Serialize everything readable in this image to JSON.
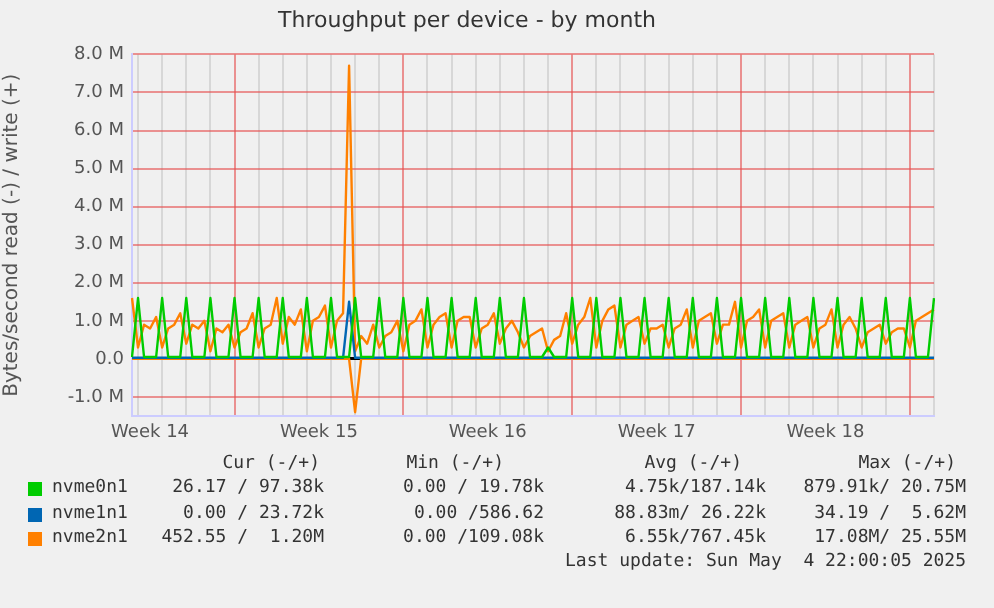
{
  "chart_data": {
    "type": "line",
    "title": "Throughput per device - by month",
    "ylabel": "Bytes/second read (-) / write (+)",
    "categories": [
      null,
      null,
      null,
      "Week 14",
      null,
      null,
      null,
      null,
      null,
      null,
      null,
      null,
      null,
      null,
      null,
      null,
      null,
      null,
      null,
      null,
      null,
      null,
      null,
      null,
      null,
      null,
      null,
      null,
      null,
      null,
      null,
      "Week 15",
      null,
      null,
      null,
      null,
      null,
      null,
      null,
      null,
      null,
      null,
      null,
      null,
      null,
      null,
      null,
      null,
      null,
      null,
      null,
      null,
      null,
      null,
      null,
      null,
      null,
      null,
      null,
      "Week 16",
      null,
      null,
      null,
      null,
      null,
      null,
      null,
      null,
      null,
      null,
      null,
      null,
      null,
      null,
      null,
      null,
      null,
      null,
      null,
      null,
      null,
      null,
      null,
      null,
      null,
      null,
      null,
      "Week 17",
      null,
      null,
      null,
      null,
      null,
      null,
      null,
      null,
      null,
      null,
      null,
      null,
      null,
      null,
      null,
      null,
      null,
      null,
      null,
      null,
      null,
      null,
      null,
      null,
      null,
      null,
      null,
      "Week 18",
      null,
      null,
      null,
      null,
      null,
      null,
      null,
      null,
      null,
      null,
      null,
      null,
      null,
      null,
      null,
      null,
      null,
      null
    ],
    "ylim": [
      -1.5,
      8
    ],
    "yticks": [
      {
        "value": -1,
        "label": "-1.0 M"
      },
      {
        "value": 0,
        "label": "0.0"
      },
      {
        "value": 1,
        "label": "1.0 M"
      },
      {
        "value": 2,
        "label": "2.0 M"
      },
      {
        "value": 3,
        "label": "3.0 M"
      },
      {
        "value": 4,
        "label": "4.0 M"
      },
      {
        "value": 5,
        "label": "5.0 M"
      },
      {
        "value": 6,
        "label": "6.0 M"
      },
      {
        "value": 7,
        "label": "7.0 M"
      },
      {
        "value": 8,
        "label": "8.0 M"
      }
    ],
    "grid": true,
    "legend": "bottom",
    "marker": "none",
    "line_style": "solid",
    "series": [
      {
        "name": "nvme0n1",
        "color": "#00cc00",
        "values": [
          0.05,
          1.6,
          0.05,
          0.05,
          0.05,
          1.6,
          0.05,
          0.05,
          0.05,
          1.6,
          0.05,
          0.05,
          0.05,
          1.6,
          0.05,
          0.05,
          0.05,
          1.6,
          0.05,
          0.05,
          0.05,
          1.6,
          0.05,
          0.05,
          0.05,
          1.6,
          0.05,
          0.05,
          0.05,
          1.6,
          0.05,
          0.05,
          0.05,
          1.6,
          0.05,
          0.05,
          0.05,
          1.6,
          0.05,
          0.05,
          0.05,
          1.6,
          0.05,
          0.05,
          0.05,
          1.6,
          0.05,
          0.05,
          0.05,
          1.6,
          0.05,
          0.05,
          0.05,
          1.6,
          0.05,
          0.05,
          0.05,
          1.6,
          0.05,
          0.05,
          0.05,
          1.6,
          0.05,
          0.05,
          0.05,
          1.6,
          0.05,
          0.05,
          0.05,
          0.3,
          0.05,
          0.05,
          0.05,
          1.6,
          0.05,
          0.05,
          0.05,
          1.6,
          0.05,
          0.05,
          0.05,
          1.6,
          0.05,
          0.05,
          0.05,
          1.6,
          0.05,
          0.05,
          0.05,
          1.6,
          0.05,
          0.05,
          0.05,
          1.6,
          0.05,
          0.05,
          0.05,
          1.6,
          0.05,
          0.05,
          0.05,
          1.6,
          0.05,
          0.05,
          0.05,
          1.6,
          0.05,
          0.05,
          0.05,
          1.6,
          0.05,
          0.05,
          0.05,
          1.6,
          0.05,
          0.05,
          0.05,
          1.6,
          0.05,
          0.05,
          0.05,
          1.6,
          0.05,
          0.05,
          0.05,
          1.6,
          0.05,
          0.05,
          0.05,
          1.6,
          0.05,
          0.05,
          0.05,
          1.6
        ]
      },
      {
        "name": "nvme1n1",
        "color": "#0066b3",
        "values": [
          0.03,
          0.03,
          0.03,
          0.03,
          0.03,
          0.03,
          0.03,
          0.03,
          0.03,
          0.03,
          0.03,
          0.03,
          0.03,
          0.03,
          0.03,
          0.03,
          0.03,
          0.03,
          0.03,
          0.03,
          0.03,
          0.03,
          0.03,
          0.03,
          0.03,
          0.03,
          0.03,
          0.03,
          0.03,
          0.03,
          0.03,
          0.03,
          0.03,
          0.03,
          0.03,
          0.03,
          1.5,
          0.03,
          0.03,
          0.03,
          0.03,
          0.03,
          0.03,
          0.03,
          0.03,
          0.03,
          0.03,
          0.03,
          0.03,
          0.03,
          0.03,
          0.03,
          0.03,
          0.03,
          0.03,
          0.03,
          0.03,
          0.03,
          0.03,
          0.03,
          0.03,
          0.03,
          0.03,
          0.03,
          0.03,
          0.03,
          0.03,
          0.03,
          0.03,
          0.03,
          0.03,
          0.03,
          0.03,
          0.03,
          0.03,
          0.03,
          0.03,
          0.03,
          0.03,
          0.03,
          0.03,
          0.03,
          0.03,
          0.03,
          0.03,
          0.03,
          0.03,
          0.03,
          0.03,
          0.03,
          0.03,
          0.03,
          0.03,
          0.03,
          0.03,
          0.03,
          0.03,
          0.03,
          0.03,
          0.03,
          0.03,
          0.03,
          0.03,
          0.03,
          0.03,
          0.03,
          0.03,
          0.03,
          0.03,
          0.03,
          0.03,
          0.03,
          0.03,
          0.03,
          0.03,
          0.03,
          0.03,
          0.03,
          0.03,
          0.03,
          0.03,
          0.03,
          0.03,
          0.03,
          0.03,
          0.03,
          0.03,
          0.03,
          0.03,
          0.03,
          0.03,
          0.03,
          0.03,
          0.03
        ]
      },
      {
        "name": "nvme2n1",
        "color": "#ff8000",
        "values": [
          1.6,
          0.3,
          0.9,
          0.8,
          1.1,
          0.3,
          0.8,
          0.9,
          1.2,
          0.4,
          0.9,
          0.8,
          1.0,
          0.2,
          0.8,
          0.7,
          0.9,
          0.3,
          0.7,
          0.8,
          1.2,
          0.3,
          0.8,
          0.9,
          1.6,
          0.4,
          1.1,
          0.9,
          1.3,
          0.2,
          1.0,
          1.1,
          1.4,
          0.3,
          1.0,
          1.2,
          7.7,
          0.2,
          0.6,
          0.4,
          0.9,
          0.3,
          0.6,
          0.7,
          1.0,
          0.2,
          0.9,
          1.0,
          1.3,
          0.3,
          0.9,
          1.1,
          1.2,
          0.3,
          1.0,
          1.1,
          1.1,
          0.3,
          0.8,
          0.9,
          1.2,
          0.4,
          0.8,
          1.0,
          0.7,
          0.3,
          0.6,
          0.7,
          0.8,
          0.2,
          0.5,
          0.6,
          1.2,
          0.4,
          0.9,
          1.1,
          1.6,
          0.3,
          1.0,
          1.3,
          1.4,
          0.3,
          0.9,
          1.0,
          1.1,
          0.4,
          0.8,
          0.8,
          0.9,
          0.3,
          0.8,
          0.9,
          1.3,
          0.3,
          1.0,
          1.1,
          1.2,
          0.4,
          0.9,
          0.9,
          1.5,
          0.3,
          1.0,
          1.1,
          1.3,
          0.3,
          1.0,
          1.1,
          1.2,
          0.3,
          0.9,
          1.0,
          1.1,
          0.3,
          0.8,
          0.9,
          1.3,
          0.3,
          0.9,
          1.1,
          0.8,
          0.3,
          0.7,
          0.8,
          0.9,
          0.4,
          0.7,
          0.8,
          0.8,
          0.3,
          1.0,
          1.1,
          1.2,
          1.3
        ]
      },
      {
        "color": "#ff8000",
        "values": [
          0,
          0,
          0,
          0,
          0,
          0,
          0,
          0,
          0,
          0,
          0,
          0,
          0,
          0,
          0,
          0,
          0,
          0,
          0,
          0,
          0,
          0,
          0,
          0,
          0,
          0,
          0,
          0,
          0,
          0,
          0,
          0,
          0,
          0,
          0,
          0,
          0,
          -1.4,
          0,
          0,
          0,
          0,
          0,
          0,
          0,
          0,
          0,
          0,
          0,
          0,
          0,
          0,
          0,
          0,
          0,
          0,
          0,
          0,
          0,
          0,
          0,
          0,
          0,
          0,
          0,
          0,
          0,
          0,
          0,
          0,
          0,
          0,
          0,
          0,
          0,
          0,
          0,
          0,
          0,
          0,
          0,
          0,
          0,
          0,
          0,
          0,
          0,
          0,
          0,
          0,
          0,
          0,
          0,
          0,
          0,
          0,
          0,
          0,
          0,
          0,
          0,
          0,
          0,
          0,
          0,
          0,
          0,
          0,
          0,
          0,
          0,
          0,
          0,
          0,
          0,
          0,
          0,
          0,
          0,
          0,
          0,
          0,
          0,
          0,
          0,
          0,
          0,
          0,
          0,
          0,
          0,
          0,
          0,
          0
        ]
      }
    ],
    "annotations": [
      "Cur (-/+)",
      "Min (-/+)",
      "Avg (-/+)",
      "Max (-/+)",
      "26.17 / 97.38k",
      "0.00 / 19.78k",
      "4.75k/187.14k",
      "879.91k/ 20.75M",
      "0.00 / 23.72k",
      "0.00 /586.62",
      "88.83m/ 26.22k",
      "34.19 /  5.62M",
      "452.55 /  1.20M",
      "0.00 /109.08k",
      "6.55k/767.45k",
      "17.08M/ 25.55M",
      "Last update: Sun May  4 22:00:05 2025"
    ]
  }
}
